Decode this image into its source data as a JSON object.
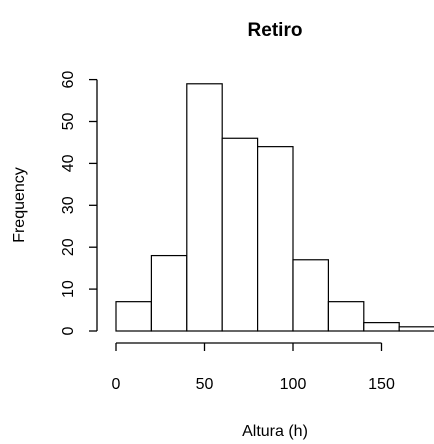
{
  "chart_data": {
    "type": "bar",
    "title": "Retiro",
    "xlabel": "Altura (h)",
    "ylabel": "Frequency",
    "bins": [
      {
        "x0": 0,
        "x1": 20,
        "value": 7
      },
      {
        "x0": 20,
        "x1": 40,
        "value": 18
      },
      {
        "x0": 40,
        "x1": 60,
        "value": 59
      },
      {
        "x0": 60,
        "x1": 80,
        "value": 46
      },
      {
        "x0": 80,
        "x1": 100,
        "value": 44
      },
      {
        "x0": 100,
        "x1": 120,
        "value": 17
      },
      {
        "x0": 120,
        "x1": 140,
        "value": 7
      },
      {
        "x0": 140,
        "x1": 160,
        "value": 2
      },
      {
        "x0": 160,
        "x1": 180,
        "value": 1
      }
    ],
    "x_ticks": [
      "0",
      "50",
      "100",
      "150"
    ],
    "y_ticks": [
      "0",
      "10",
      "20",
      "30",
      "40",
      "50",
      "60"
    ],
    "xlim": [
      0,
      180
    ],
    "ylim": [
      0,
      60
    ],
    "grid": false
  }
}
